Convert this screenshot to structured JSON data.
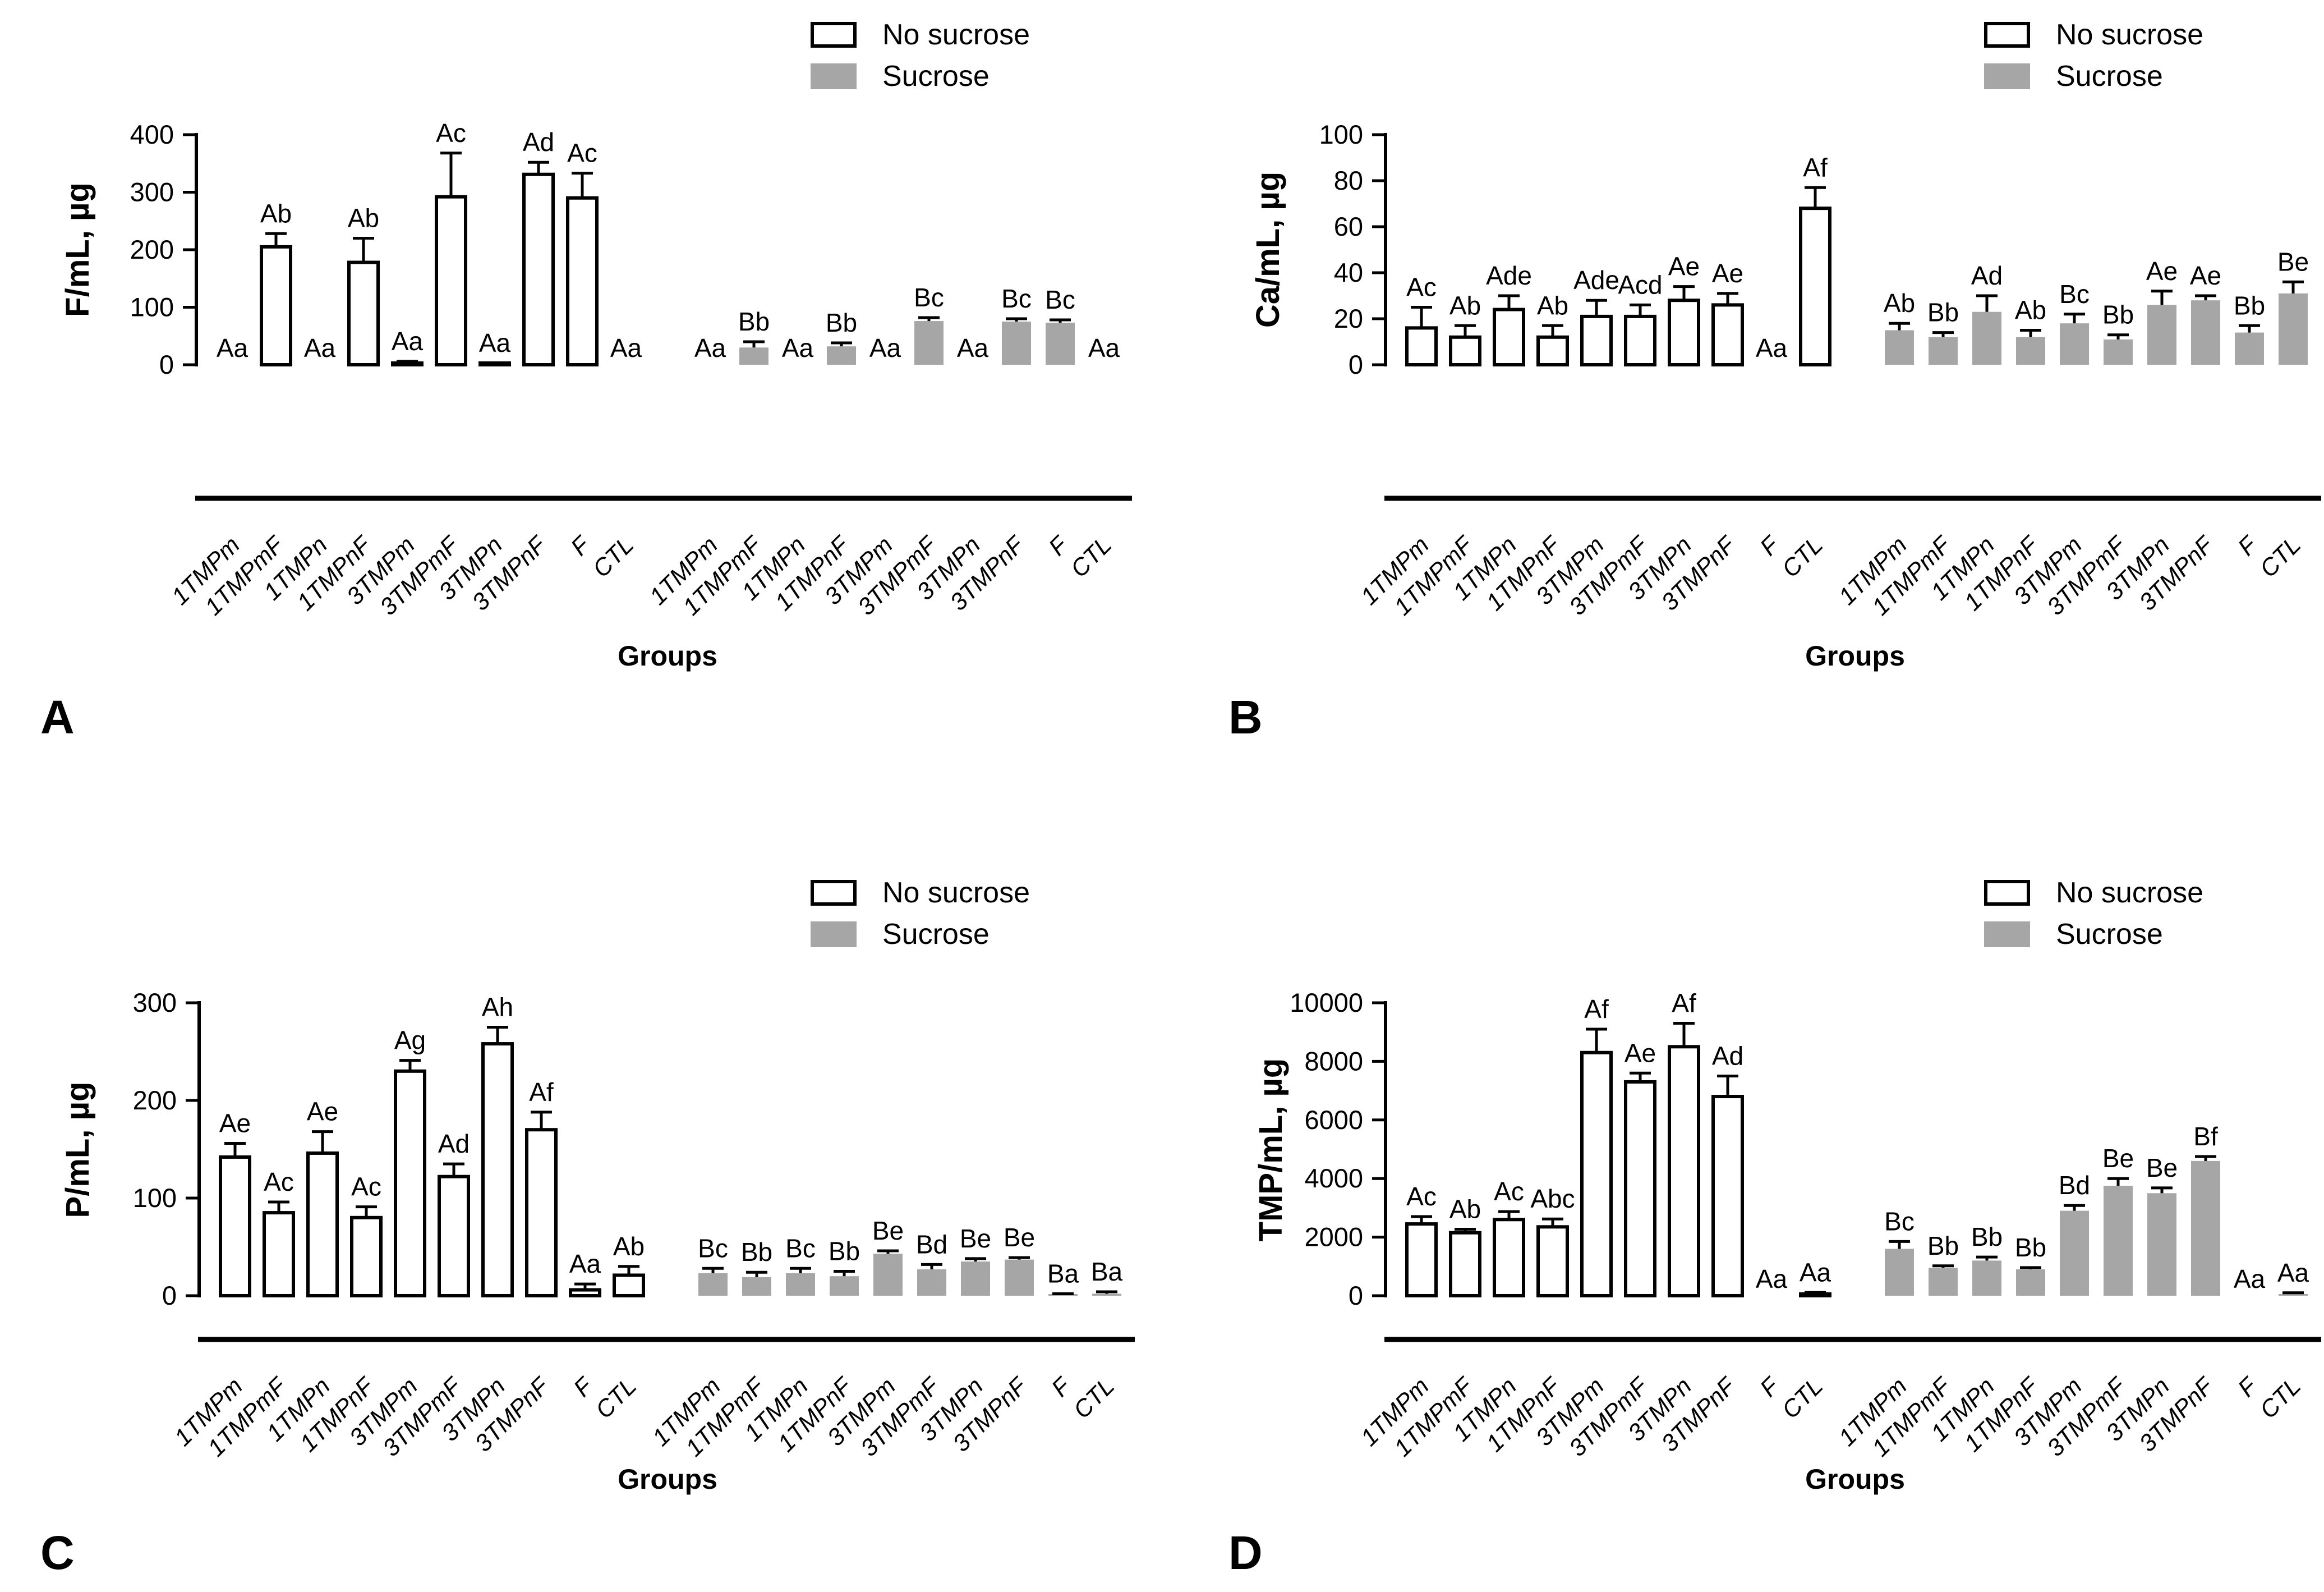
{
  "figure": {
    "xlabel": "Groups",
    "legend": {
      "no_sucrose": "No sucrose",
      "sucrose": "Sucrose"
    },
    "colors": {
      "no_sucrose_fill": "#ffffff",
      "sucrose_fill": "#a6a6a6",
      "stroke": "#000000"
    }
  },
  "chart_data": [
    {
      "type": "bar",
      "panel_label": "A",
      "ylabel": "F/mL, µg",
      "xlabel": "Groups",
      "ylim": [
        0,
        400
      ],
      "yticks": [
        0,
        100,
        200,
        300,
        400
      ],
      "grid": false,
      "legend_position": "top-right",
      "categories": [
        "1TMPm",
        "1TMPmF",
        "1TMPn",
        "1TMPnF",
        "3TMPm",
        "3TMPmF",
        "3TMPn",
        "3TMPnF",
        "F",
        "CTL"
      ],
      "series": [
        {
          "name": "No sucrose",
          "values": [
            0,
            205,
            0,
            178,
            2,
            292,
            1,
            331,
            290,
            0
          ],
          "errors_top": [
            null,
            228,
            null,
            220,
            6,
            368,
            3,
            352,
            333,
            null
          ],
          "sig_labels": [
            "Aa",
            "Ab",
            "Aa",
            "Ab",
            "Aa",
            "Ac",
            "Aa",
            "Ad",
            "Ac",
            "Aa"
          ]
        },
        {
          "name": "Sucrose",
          "values": [
            0,
            30,
            0,
            32,
            0,
            76,
            0,
            75,
            73,
            0
          ],
          "errors_top": [
            null,
            40,
            null,
            38,
            null,
            82,
            null,
            80,
            78,
            null
          ],
          "sig_labels": [
            "Aa",
            "Bb",
            "Aa",
            "Bb",
            "Aa",
            "Bc",
            "Aa",
            "Bc",
            "Bc",
            "Aa"
          ]
        }
      ]
    },
    {
      "type": "bar",
      "panel_label": "B",
      "ylabel": "Ca/mL, µg",
      "xlabel": "Groups",
      "ylim": [
        0,
        100
      ],
      "yticks": [
        0,
        20,
        40,
        60,
        80,
        100
      ],
      "grid": false,
      "legend_position": "top-right",
      "categories": [
        "1TMPm",
        "1TMPmF",
        "1TMPn",
        "1TMPnF",
        "3TMPm",
        "3TMPmF",
        "3TMPn",
        "3TMPnF",
        "F",
        "CTL"
      ],
      "series": [
        {
          "name": "No sucrose",
          "values": [
            16,
            12,
            24,
            12,
            21,
            21,
            28,
            26,
            0,
            68
          ],
          "errors_top": [
            25,
            17,
            30,
            17,
            28,
            26,
            34,
            31,
            null,
            77
          ],
          "sig_labels": [
            "Ac",
            "Ab",
            "Ade",
            "Ab",
            "Ade",
            "Acd",
            "Ae",
            "Ae",
            "Aa",
            "Af"
          ]
        },
        {
          "name": "Sucrose",
          "values": [
            15,
            12,
            23,
            12,
            18,
            11,
            26,
            28,
            14,
            31
          ],
          "errors_top": [
            18,
            14,
            30,
            15,
            22,
            13,
            32,
            30,
            17,
            36
          ],
          "sig_labels": [
            "Ab",
            "Bb",
            "Ad",
            "Ab",
            "Bc",
            "Bb",
            "Ae",
            "Ae",
            "Bb",
            "Be"
          ]
        }
      ]
    },
    {
      "type": "bar",
      "panel_label": "C",
      "ylabel": "P/mL, µg",
      "xlabel": "Groups",
      "ylim": [
        0,
        300
      ],
      "yticks": [
        0,
        100,
        200,
        300
      ],
      "grid": false,
      "legend_position": "top-right",
      "categories": [
        "1TMPm",
        "1TMPmF",
        "1TMPn",
        "1TMPnF",
        "3TMPm",
        "3TMPmF",
        "3TMPn",
        "3TMPnF",
        "F",
        "CTL"
      ],
      "series": [
        {
          "name": "No sucrose",
          "values": [
            142,
            85,
            146,
            80,
            230,
            122,
            258,
            170,
            6,
            21
          ],
          "errors_top": [
            156,
            96,
            168,
            91,
            241,
            135,
            275,
            188,
            12,
            30
          ],
          "sig_labels": [
            "Ae",
            "Ac",
            "Ae",
            "Ac",
            "Ag",
            "Ad",
            "Ah",
            "Af",
            "Aa",
            "Ab"
          ]
        },
        {
          "name": "Sucrose",
          "values": [
            23,
            19,
            23,
            20,
            43,
            27,
            35,
            37,
            1,
            2
          ],
          "errors_top": [
            28,
            24,
            28,
            25,
            46,
            32,
            38,
            39,
            2,
            4
          ],
          "sig_labels": [
            "Bc",
            "Bb",
            "Bc",
            "Bb",
            "Be",
            "Bd",
            "Be",
            "Be",
            "Ba",
            "Ba"
          ]
        }
      ]
    },
    {
      "type": "bar",
      "panel_label": "D",
      "ylabel": "TMP/mL, µg",
      "xlabel": "Groups",
      "ylim": [
        0,
        10000
      ],
      "yticks": [
        0,
        2000,
        4000,
        6000,
        8000,
        10000
      ],
      "grid": false,
      "legend_position": "top-right",
      "categories": [
        "1TMPm",
        "1TMPmF",
        "1TMPn",
        "1TMPnF",
        "3TMPm",
        "3TMPmF",
        "3TMPn",
        "3TMPnF",
        "F",
        "CTL"
      ],
      "series": [
        {
          "name": "No sucrose",
          "values": [
            2450,
            2150,
            2600,
            2350,
            8300,
            7300,
            8500,
            6800,
            0,
            50
          ],
          "errors_top": [
            2700,
            2270,
            2870,
            2620,
            9100,
            7600,
            9300,
            7500,
            null,
            110
          ],
          "sig_labels": [
            "Ac",
            "Ab",
            "Ac",
            "Abc",
            "Af",
            "Ae",
            "Af",
            "Ad",
            "Aa",
            "Aa"
          ]
        },
        {
          "name": "Sucrose",
          "values": [
            1600,
            950,
            1200,
            900,
            2900,
            3750,
            3500,
            4600,
            0,
            40
          ],
          "errors_top": [
            1850,
            1020,
            1320,
            960,
            3080,
            4000,
            3680,
            4750,
            null,
            100
          ],
          "sig_labels": [
            "Bc",
            "Bb",
            "Bb",
            "Bb",
            "Bd",
            "Be",
            "Be",
            "Bf",
            "Aa",
            "Aa"
          ]
        }
      ]
    }
  ]
}
